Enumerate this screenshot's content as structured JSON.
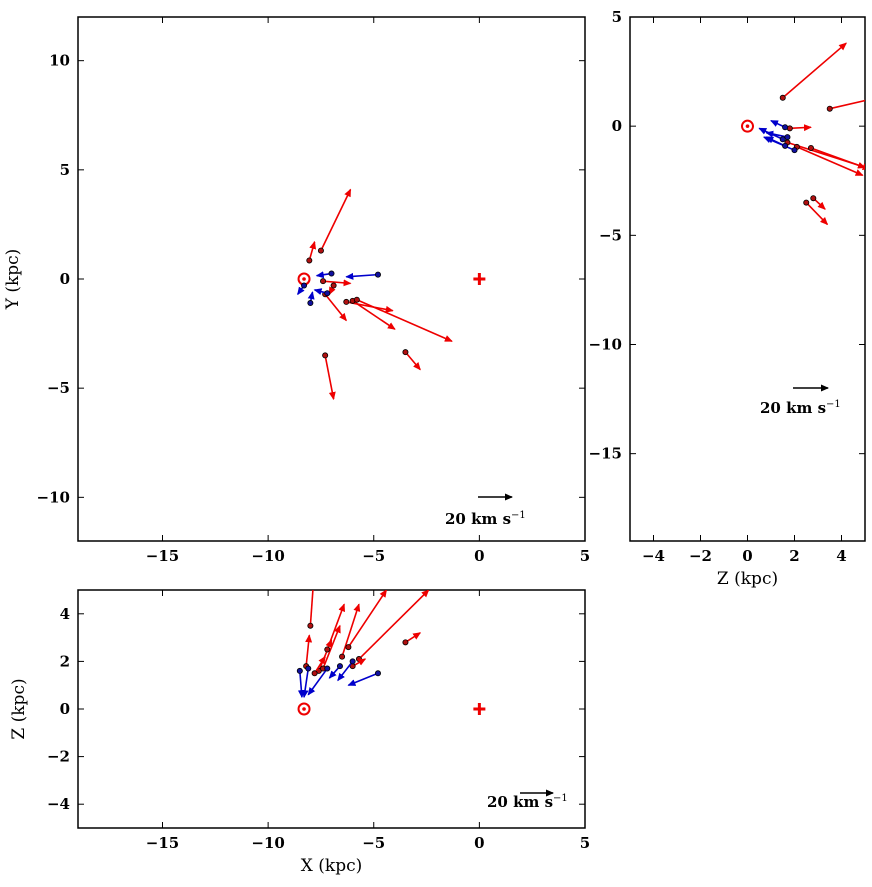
{
  "chart_data": [
    {
      "type": "scatter",
      "name": "xy",
      "title": "",
      "xlabel": "",
      "ylabel": "Y (kpc)",
      "xlim": [
        -19,
        5
      ],
      "ylim": [
        -12,
        12
      ],
      "xticks": [
        -15,
        -10,
        -5,
        0,
        5
      ],
      "yticks": [
        -10,
        -5,
        0,
        5,
        10
      ],
      "xtick_labels": [
        "−15",
        "−10",
        "−5",
        "0",
        "5"
      ],
      "ytick_labels": [
        "−10",
        "−5",
        "0",
        "5",
        "10"
      ],
      "scale_label": "20 km s",
      "scale_exp": "−1",
      "sun": [
        -8.3,
        0
      ],
      "gc": [
        0,
        0
      ],
      "points": [
        {
          "x": -8.05,
          "y": 0.85,
          "dx": 0.25,
          "dy": 0.85,
          "c": "red"
        },
        {
          "x": -7.5,
          "y": 1.3,
          "dx": 1.4,
          "dy": 2.8,
          "c": "red"
        },
        {
          "x": -7.4,
          "y": -0.1,
          "dx": 1.3,
          "dy": -0.1,
          "c": "red"
        },
        {
          "x": -7.3,
          "y": -0.7,
          "dx": 1.0,
          "dy": -1.2,
          "c": "red"
        },
        {
          "x": -6.9,
          "y": -0.3,
          "dx": -0.2,
          "dy": -0.4,
          "c": "red"
        },
        {
          "x": -6.3,
          "y": -1.05,
          "dx": 2.2,
          "dy": -0.4,
          "c": "red"
        },
        {
          "x": -6.0,
          "y": -1.0,
          "dx": 2.0,
          "dy": -1.3,
          "c": "red"
        },
        {
          "x": -5.8,
          "y": -0.95,
          "dx": 4.5,
          "dy": -1.9,
          "c": "red"
        },
        {
          "x": -7.3,
          "y": -3.5,
          "dx": 0.4,
          "dy": -2.0,
          "c": "red"
        },
        {
          "x": -3.5,
          "y": -3.35,
          "dx": 0.7,
          "dy": -0.8,
          "c": "red"
        },
        {
          "x": -7.0,
          "y": 0.25,
          "dx": -0.7,
          "dy": -0.1,
          "c": "blue"
        },
        {
          "x": -4.8,
          "y": 0.2,
          "dx": -1.5,
          "dy": -0.1,
          "c": "blue"
        },
        {
          "x": -8.0,
          "y": -1.1,
          "dx": 0.1,
          "dy": 0.5,
          "c": "blue"
        },
        {
          "x": -7.2,
          "y": -0.65,
          "dx": -0.6,
          "dy": 0.15,
          "c": "blue"
        },
        {
          "x": -8.3,
          "y": -0.3,
          "dx": -0.3,
          "dy": -0.4,
          "c": "blue"
        }
      ]
    },
    {
      "type": "scatter",
      "name": "zy",
      "title": "",
      "xlabel": "Z (kpc)",
      "ylabel": "",
      "xlim": [
        -5,
        5
      ],
      "ylim": [
        -19,
        5
      ],
      "xticks": [
        -4,
        -2,
        0,
        2,
        4
      ],
      "yticks": [
        -15,
        -10,
        -5,
        0,
        5
      ],
      "xtick_labels": [
        "−4",
        "−2",
        "0",
        "2",
        "4"
      ],
      "ytick_labels": [
        "−15",
        "−10",
        "−5",
        "0",
        "5"
      ],
      "scale_label": "20 km s",
      "scale_exp": "−1",
      "sun": [
        0,
        0
      ],
      "points": [
        {
          "x": 1.5,
          "y": 1.3,
          "dx": 2.7,
          "dy": 2.5,
          "c": "red"
        },
        {
          "x": 3.5,
          "y": 0.8,
          "dx": 2.0,
          "dy": 0.5,
          "c": "red"
        },
        {
          "x": 1.8,
          "y": -0.1,
          "dx": 0.9,
          "dy": 0.05,
          "c": "red"
        },
        {
          "x": 1.7,
          "y": -0.75,
          "dx": 3.5,
          "dy": -1.2,
          "c": "red"
        },
        {
          "x": 2.1,
          "y": -0.95,
          "dx": 2.8,
          "dy": -1.3,
          "c": "red"
        },
        {
          "x": 2.7,
          "y": -1.0,
          "dx": 2.3,
          "dy": -0.9,
          "c": "red"
        },
        {
          "x": 2.5,
          "y": -3.5,
          "dx": 0.9,
          "dy": -1.0,
          "c": "red"
        },
        {
          "x": 2.8,
          "y": -3.3,
          "dx": 0.5,
          "dy": -0.5,
          "c": "red"
        },
        {
          "x": 1.6,
          "y": -0.05,
          "dx": -0.6,
          "dy": 0.3,
          "c": "blue"
        },
        {
          "x": 1.7,
          "y": -0.5,
          "dx": -0.9,
          "dy": 0.2,
          "c": "blue"
        },
        {
          "x": 1.5,
          "y": -0.6,
          "dx": -1.0,
          "dy": 0.5,
          "c": "blue"
        },
        {
          "x": 2.0,
          "y": -1.1,
          "dx": -1.3,
          "dy": 0.6,
          "c": "blue"
        },
        {
          "x": 1.6,
          "y": -0.9,
          "dx": -0.8,
          "dy": 0.4,
          "c": "blue"
        }
      ]
    },
    {
      "type": "scatter",
      "name": "xz",
      "title": "",
      "xlabel": "X (kpc)",
      "ylabel": "Z (kpc)",
      "xlim": [
        -19,
        5
      ],
      "ylim": [
        -5,
        5
      ],
      "xticks": [
        -15,
        -10,
        -5,
        0,
        5
      ],
      "yticks": [
        -4,
        -2,
        0,
        2,
        4
      ],
      "xtick_labels": [
        "−15",
        "−10",
        "−5",
        "0",
        "5"
      ],
      "ytick_labels": [
        "−4",
        "−2",
        "0",
        "2",
        "4"
      ],
      "scale_label": "20 km s",
      "scale_exp": "−1",
      "sun": [
        -8.3,
        0
      ],
      "gc": [
        0,
        0
      ],
      "points": [
        {
          "x": -8.0,
          "y": 3.5,
          "dx": 0.2,
          "dy": 2.5,
          "c": "red"
        },
        {
          "x": -8.2,
          "y": 1.8,
          "dx": 0.15,
          "dy": 1.3,
          "c": "red"
        },
        {
          "x": -7.6,
          "y": 1.6,
          "dx": 0.6,
          "dy": 1.3,
          "c": "red"
        },
        {
          "x": -7.4,
          "y": 1.7,
          "dx": 0.8,
          "dy": 1.8,
          "c": "red"
        },
        {
          "x": -7.2,
          "y": 2.5,
          "dx": 0.8,
          "dy": 1.9,
          "c": "red"
        },
        {
          "x": -6.5,
          "y": 2.2,
          "dx": 0.8,
          "dy": 2.2,
          "c": "red"
        },
        {
          "x": -6.2,
          "y": 2.6,
          "dx": 1.8,
          "dy": 2.4,
          "c": "red"
        },
        {
          "x": -5.7,
          "y": 2.1,
          "dx": 3.3,
          "dy": 2.9,
          "c": "red"
        },
        {
          "x": -3.5,
          "y": 2.8,
          "dx": 0.7,
          "dy": 0.4,
          "c": "red"
        },
        {
          "x": -6.0,
          "y": 1.8,
          "dx": 0.6,
          "dy": 0.3,
          "c": "red"
        },
        {
          "x": -7.8,
          "y": 1.5,
          "dx": 0.5,
          "dy": 0.7,
          "c": "red"
        },
        {
          "x": -8.5,
          "y": 1.6,
          "dx": 0.1,
          "dy": -1.1,
          "c": "blue"
        },
        {
          "x": -8.1,
          "y": 1.7,
          "dx": -0.2,
          "dy": -1.2,
          "c": "blue"
        },
        {
          "x": -7.2,
          "y": 1.7,
          "dx": -0.9,
          "dy": -1.1,
          "c": "blue"
        },
        {
          "x": -6.6,
          "y": 1.8,
          "dx": -0.5,
          "dy": -0.5,
          "c": "blue"
        },
        {
          "x": -6.0,
          "y": 2.0,
          "dx": -0.7,
          "dy": -0.8,
          "c": "blue"
        },
        {
          "x": -4.8,
          "y": 1.5,
          "dx": -1.4,
          "dy": -0.5,
          "c": "blue"
        }
      ]
    }
  ]
}
